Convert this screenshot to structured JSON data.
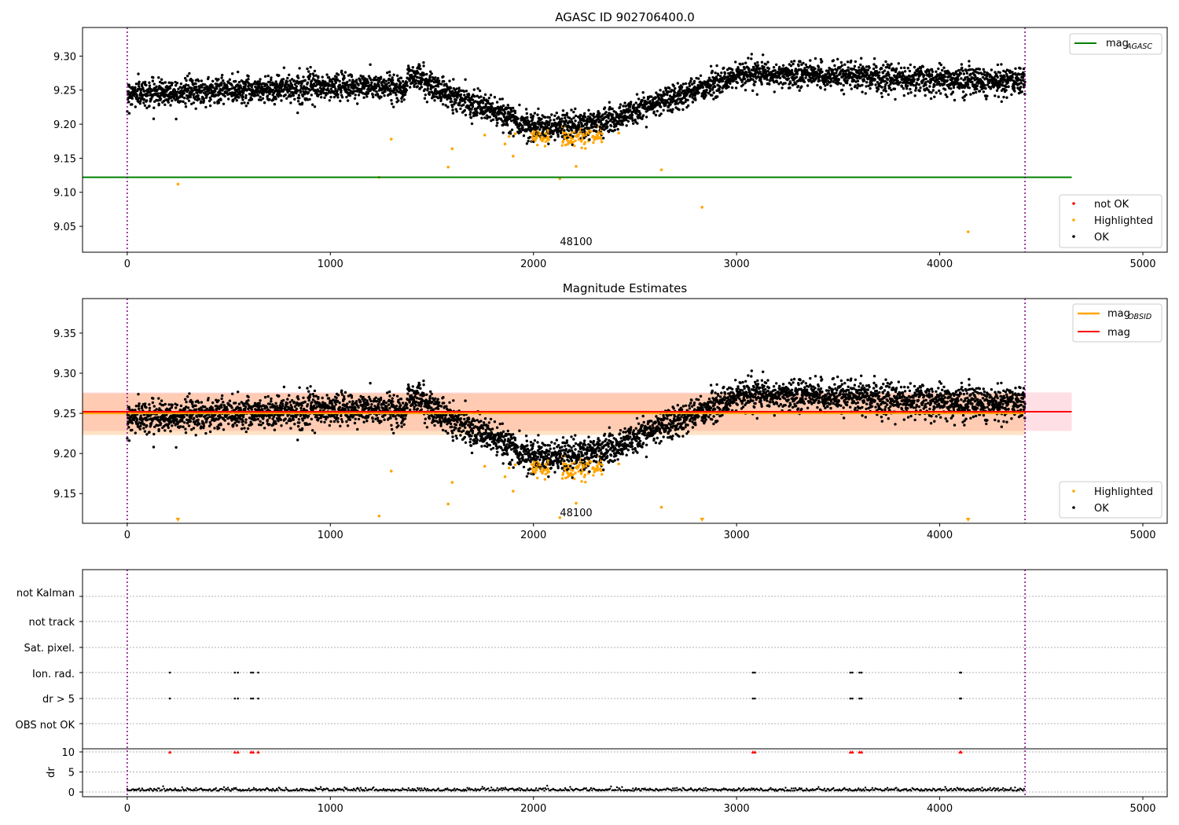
{
  "chart_data": [
    {
      "type": "scatter",
      "title": "AGASC ID 902706400.0",
      "xlim": [
        -220,
        5120
      ],
      "ylim": [
        9.012,
        9.342
      ],
      "xticks": [
        "0",
        "1000",
        "2000",
        "3000",
        "4000",
        "5000"
      ],
      "yticks": [
        "9.05",
        "9.10",
        "9.15",
        "9.20",
        "9.25",
        "9.30"
      ],
      "series": [
        {
          "name": "OK",
          "color": "#000000",
          "description": "~4400 observations; magnitude ~9.245 at x=0 rising to ~9.255 near x=1000, dipping to ~9.195 around x=2000-2300, rising to ~9.27 after x=3000"
        },
        {
          "name": "Highlighted",
          "color": "#ffa500",
          "points": [
            [
              250,
              9.112
            ],
            [
              1240,
              9.122
            ],
            [
              1300,
              9.178
            ],
            [
              1580,
              9.137
            ],
            [
              1600,
              9.164
            ],
            [
              1760,
              9.184
            ],
            [
              1860,
              9.171
            ],
            [
              1880,
              9.182
            ],
            [
              1900,
              9.153
            ],
            [
              1910,
              9.186
            ],
            [
              2130,
              9.12
            ],
            [
              2210,
              9.138
            ],
            [
              2420,
              9.187
            ],
            [
              2630,
              9.133
            ],
            [
              2830,
              9.078
            ],
            [
              4140,
              9.042
            ]
          ]
        },
        {
          "name": "not OK",
          "color": "#ff0000",
          "points": []
        }
      ],
      "lines": [
        {
          "name": "mag_AGASC",
          "y": 9.122,
          "x": [
            -220,
            4650
          ],
          "color": "#008000"
        }
      ],
      "vlines": [
        0,
        4420
      ],
      "annotation": "48100",
      "legend_lines": [
        {
          "label": "mag",
          "sub": "AGASC",
          "color": "#008000"
        }
      ],
      "legend_markers": [
        {
          "label": "not OK",
          "color": "#ff0000"
        },
        {
          "label": "Highlighted",
          "color": "#ffa500"
        },
        {
          "label": "OK",
          "color": "#000000"
        }
      ]
    },
    {
      "type": "scatter",
      "title": "Magnitude Estimates",
      "xlim": [
        -220,
        5120
      ],
      "ylim": [
        9.113,
        9.393
      ],
      "xticks": [
        "0",
        "1000",
        "2000",
        "3000",
        "4000",
        "5000"
      ],
      "yticks": [
        "9.15",
        "9.20",
        "9.25",
        "9.30",
        "9.35"
      ],
      "bands": [
        {
          "name": "mag range",
          "y0": 9.228,
          "y1": 9.276,
          "x": [
            -220,
            4650
          ],
          "color": "#ff6e8c",
          "opacity": 0.22
        },
        {
          "name": "mag_OBSID range",
          "y0": 9.223,
          "y1": 9.275,
          "x": [
            -220,
            4420
          ],
          "color": "#ffa040",
          "opacity": 0.3
        }
      ],
      "lines": [
        {
          "name": "mag_OBSID",
          "y": 9.25,
          "x": [
            -220,
            4420
          ],
          "color": "#ffa500"
        },
        {
          "name": "mag",
          "y": 9.252,
          "x": [
            -220,
            4650
          ],
          "color": "#ff0000"
        }
      ],
      "offscale_markers": [
        250,
        2830,
        4140
      ],
      "vlines": [
        0,
        4420
      ],
      "annotation": "48100",
      "legend_lines": [
        {
          "label": "mag",
          "sub": "OBSID",
          "color": "#ffa500"
        },
        {
          "label": "mag",
          "sub": "",
          "color": "#ff0000"
        }
      ],
      "legend_markers": [
        {
          "label": "Highlighted",
          "color": "#ffa500"
        },
        {
          "label": "OK",
          "color": "#000000"
        }
      ]
    },
    {
      "type": "scatter",
      "xlim": [
        -220,
        5120
      ],
      "xticks": [
        "0",
        "1000",
        "2000",
        "3000",
        "4000",
        "5000"
      ],
      "flag_rows": [
        "not Kalman",
        "not track",
        "Sat. pixel.",
        "Ion. rad.",
        "dr > 5",
        "OBS not OK"
      ],
      "flag_points": {
        "Ion. rad.": [
          210,
          530,
          545,
          610,
          620,
          645,
          3080,
          3090,
          3560,
          3570,
          3605,
          3615,
          4100,
          4105
        ],
        "dr > 5": [
          210,
          530,
          545,
          610,
          620,
          645,
          3080,
          3090,
          3560,
          3570,
          3605,
          3615,
          4100,
          4105
        ]
      },
      "dr_ylabel": "dr",
      "dr_yticks": [
        "0",
        "5",
        "10"
      ],
      "dr_ylim": [
        -0.5,
        10.5
      ],
      "dr_overflow_x": [
        210,
        530,
        545,
        610,
        620,
        645,
        3080,
        3090,
        3560,
        3570,
        3605,
        3615,
        4100,
        4105
      ],
      "vlines": [
        0,
        4420
      ]
    }
  ]
}
